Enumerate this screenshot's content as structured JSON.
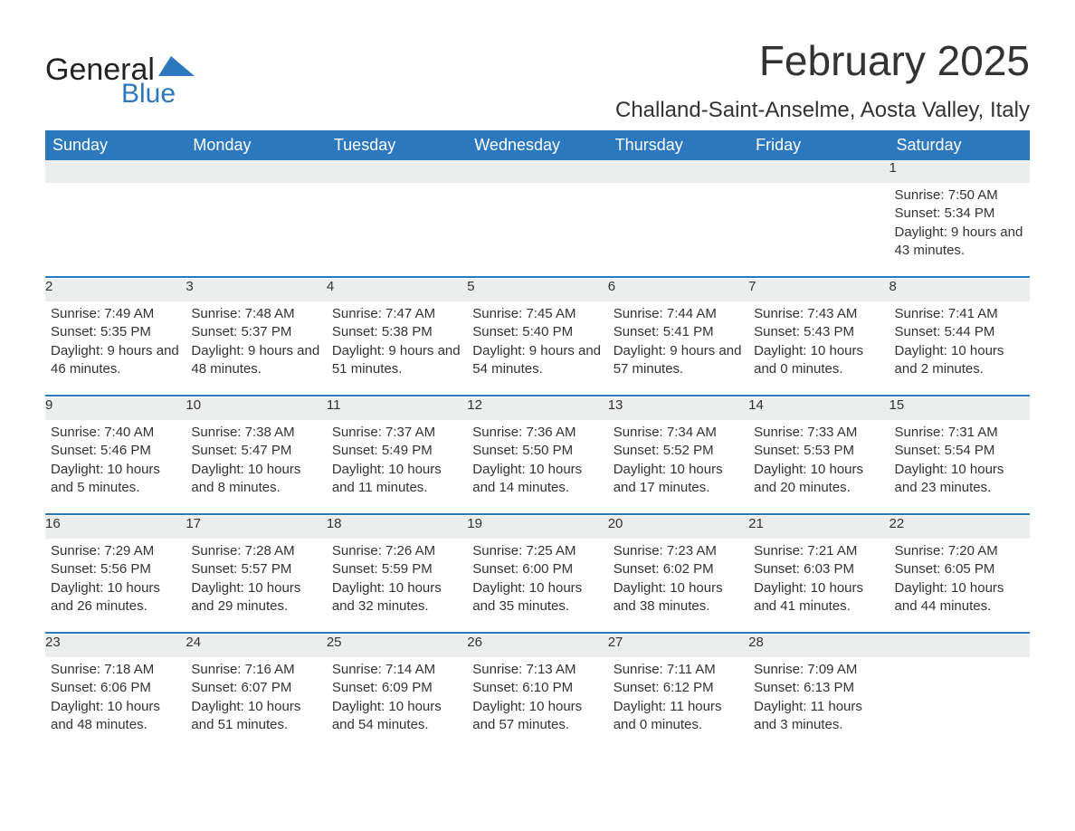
{
  "brand": {
    "name_part1": "General",
    "name_part2": "Blue"
  },
  "title": "February 2025",
  "location": "Challand-Saint-Anselme, Aosta Valley, Italy",
  "colors": {
    "header_bg": "#2c78bf",
    "header_text": "#ffffff",
    "daynum_bg": "#eceded",
    "daynum_text": "#555555",
    "body_text": "#333333",
    "rule": "#2c78bf",
    "page_bg": "#ffffff"
  },
  "fonts": {
    "month_title_pt": 46,
    "location_pt": 24,
    "header_pt": 18,
    "daynum_pt": 18,
    "cell_pt": 15
  },
  "weekdays": [
    "Sunday",
    "Monday",
    "Tuesday",
    "Wednesday",
    "Thursday",
    "Friday",
    "Saturday"
  ],
  "weeks": [
    [
      null,
      null,
      null,
      null,
      null,
      null,
      {
        "n": "1",
        "sunrise": "Sunrise: 7:50 AM",
        "sunset": "Sunset: 5:34 PM",
        "daylight": "Daylight: 9 hours and 43 minutes."
      }
    ],
    [
      {
        "n": "2",
        "sunrise": "Sunrise: 7:49 AM",
        "sunset": "Sunset: 5:35 PM",
        "daylight": "Daylight: 9 hours and 46 minutes."
      },
      {
        "n": "3",
        "sunrise": "Sunrise: 7:48 AM",
        "sunset": "Sunset: 5:37 PM",
        "daylight": "Daylight: 9 hours and 48 minutes."
      },
      {
        "n": "4",
        "sunrise": "Sunrise: 7:47 AM",
        "sunset": "Sunset: 5:38 PM",
        "daylight": "Daylight: 9 hours and 51 minutes."
      },
      {
        "n": "5",
        "sunrise": "Sunrise: 7:45 AM",
        "sunset": "Sunset: 5:40 PM",
        "daylight": "Daylight: 9 hours and 54 minutes."
      },
      {
        "n": "6",
        "sunrise": "Sunrise: 7:44 AM",
        "sunset": "Sunset: 5:41 PM",
        "daylight": "Daylight: 9 hours and 57 minutes."
      },
      {
        "n": "7",
        "sunrise": "Sunrise: 7:43 AM",
        "sunset": "Sunset: 5:43 PM",
        "daylight": "Daylight: 10 hours and 0 minutes."
      },
      {
        "n": "8",
        "sunrise": "Sunrise: 7:41 AM",
        "sunset": "Sunset: 5:44 PM",
        "daylight": "Daylight: 10 hours and 2 minutes."
      }
    ],
    [
      {
        "n": "9",
        "sunrise": "Sunrise: 7:40 AM",
        "sunset": "Sunset: 5:46 PM",
        "daylight": "Daylight: 10 hours and 5 minutes."
      },
      {
        "n": "10",
        "sunrise": "Sunrise: 7:38 AM",
        "sunset": "Sunset: 5:47 PM",
        "daylight": "Daylight: 10 hours and 8 minutes."
      },
      {
        "n": "11",
        "sunrise": "Sunrise: 7:37 AM",
        "sunset": "Sunset: 5:49 PM",
        "daylight": "Daylight: 10 hours and 11 minutes."
      },
      {
        "n": "12",
        "sunrise": "Sunrise: 7:36 AM",
        "sunset": "Sunset: 5:50 PM",
        "daylight": "Daylight: 10 hours and 14 minutes."
      },
      {
        "n": "13",
        "sunrise": "Sunrise: 7:34 AM",
        "sunset": "Sunset: 5:52 PM",
        "daylight": "Daylight: 10 hours and 17 minutes."
      },
      {
        "n": "14",
        "sunrise": "Sunrise: 7:33 AM",
        "sunset": "Sunset: 5:53 PM",
        "daylight": "Daylight: 10 hours and 20 minutes."
      },
      {
        "n": "15",
        "sunrise": "Sunrise: 7:31 AM",
        "sunset": "Sunset: 5:54 PM",
        "daylight": "Daylight: 10 hours and 23 minutes."
      }
    ],
    [
      {
        "n": "16",
        "sunrise": "Sunrise: 7:29 AM",
        "sunset": "Sunset: 5:56 PM",
        "daylight": "Daylight: 10 hours and 26 minutes."
      },
      {
        "n": "17",
        "sunrise": "Sunrise: 7:28 AM",
        "sunset": "Sunset: 5:57 PM",
        "daylight": "Daylight: 10 hours and 29 minutes."
      },
      {
        "n": "18",
        "sunrise": "Sunrise: 7:26 AM",
        "sunset": "Sunset: 5:59 PM",
        "daylight": "Daylight: 10 hours and 32 minutes."
      },
      {
        "n": "19",
        "sunrise": "Sunrise: 7:25 AM",
        "sunset": "Sunset: 6:00 PM",
        "daylight": "Daylight: 10 hours and 35 minutes."
      },
      {
        "n": "20",
        "sunrise": "Sunrise: 7:23 AM",
        "sunset": "Sunset: 6:02 PM",
        "daylight": "Daylight: 10 hours and 38 minutes."
      },
      {
        "n": "21",
        "sunrise": "Sunrise: 7:21 AM",
        "sunset": "Sunset: 6:03 PM",
        "daylight": "Daylight: 10 hours and 41 minutes."
      },
      {
        "n": "22",
        "sunrise": "Sunrise: 7:20 AM",
        "sunset": "Sunset: 6:05 PM",
        "daylight": "Daylight: 10 hours and 44 minutes."
      }
    ],
    [
      {
        "n": "23",
        "sunrise": "Sunrise: 7:18 AM",
        "sunset": "Sunset: 6:06 PM",
        "daylight": "Daylight: 10 hours and 48 minutes."
      },
      {
        "n": "24",
        "sunrise": "Sunrise: 7:16 AM",
        "sunset": "Sunset: 6:07 PM",
        "daylight": "Daylight: 10 hours and 51 minutes."
      },
      {
        "n": "25",
        "sunrise": "Sunrise: 7:14 AM",
        "sunset": "Sunset: 6:09 PM",
        "daylight": "Daylight: 10 hours and 54 minutes."
      },
      {
        "n": "26",
        "sunrise": "Sunrise: 7:13 AM",
        "sunset": "Sunset: 6:10 PM",
        "daylight": "Daylight: 10 hours and 57 minutes."
      },
      {
        "n": "27",
        "sunrise": "Sunrise: 7:11 AM",
        "sunset": "Sunset: 6:12 PM",
        "daylight": "Daylight: 11 hours and 0 minutes."
      },
      {
        "n": "28",
        "sunrise": "Sunrise: 7:09 AM",
        "sunset": "Sunset: 6:13 PM",
        "daylight": "Daylight: 11 hours and 3 minutes."
      },
      null
    ]
  ]
}
